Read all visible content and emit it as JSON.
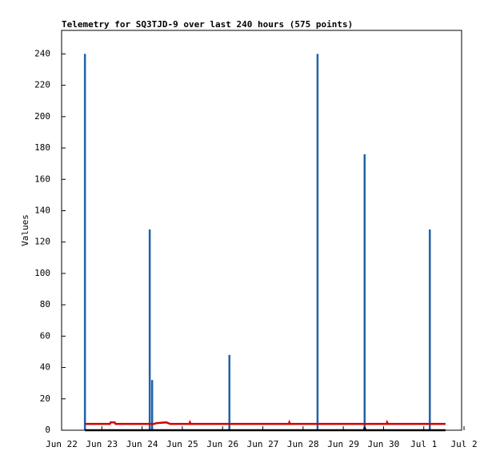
{
  "chart_data": {
    "type": "line",
    "title": "Telemetry for SQ3TJD-9 over last 240 hours (575 points)",
    "y_label": "Values",
    "xlim": [
      0,
      9.94
    ],
    "xticks": [
      {
        "value": 0,
        "label": "Jun 22"
      },
      {
        "value": 1,
        "label": "Jun 23"
      },
      {
        "value": 2,
        "label": "Jun 24"
      },
      {
        "value": 3,
        "label": "Jun 25"
      },
      {
        "value": 4,
        "label": "Jun 26"
      },
      {
        "value": 5,
        "label": "Jun 27"
      },
      {
        "value": 6,
        "label": "Jun 28"
      },
      {
        "value": 7,
        "label": "Jun 29"
      },
      {
        "value": 8,
        "label": "Jun 30"
      },
      {
        "value": 9,
        "label": "Jul 1"
      },
      {
        "value": 10,
        "label": "Jul 2"
      }
    ],
    "ylim": [
      0,
      255
    ],
    "yticks": [
      0,
      20,
      40,
      60,
      80,
      100,
      120,
      140,
      160,
      180,
      200,
      220,
      240
    ],
    "series": [
      {
        "color": "#1f63a8",
        "draw": "impulses",
        "x": [
          0.58,
          2.19,
          2.25,
          4.17,
          6.36,
          7.53,
          9.15
        ],
        "values": [
          240,
          128,
          32,
          48,
          240,
          176,
          128
        ]
      },
      {
        "color": "#d40000",
        "draw": "line",
        "x": [
          0.58,
          1.2,
          1.22,
          1.32,
          1.34,
          2.3,
          2.35,
          2.6,
          2.7,
          3.18,
          3.19,
          3.21,
          5.65,
          5.66,
          5.68,
          8.08,
          8.09,
          8.11,
          9.54
        ],
        "values": [
          4,
          4,
          5,
          5,
          4,
          4,
          4.5,
          5,
          4,
          4,
          5,
          4,
          4,
          5,
          4,
          4,
          5,
          4,
          4
        ]
      },
      {
        "color": "#000000",
        "draw": "line",
        "x": [
          0.58,
          7.52,
          7.53,
          7.55,
          9.54
        ],
        "values": [
          0,
          0,
          2,
          0,
          0
        ]
      }
    ]
  }
}
